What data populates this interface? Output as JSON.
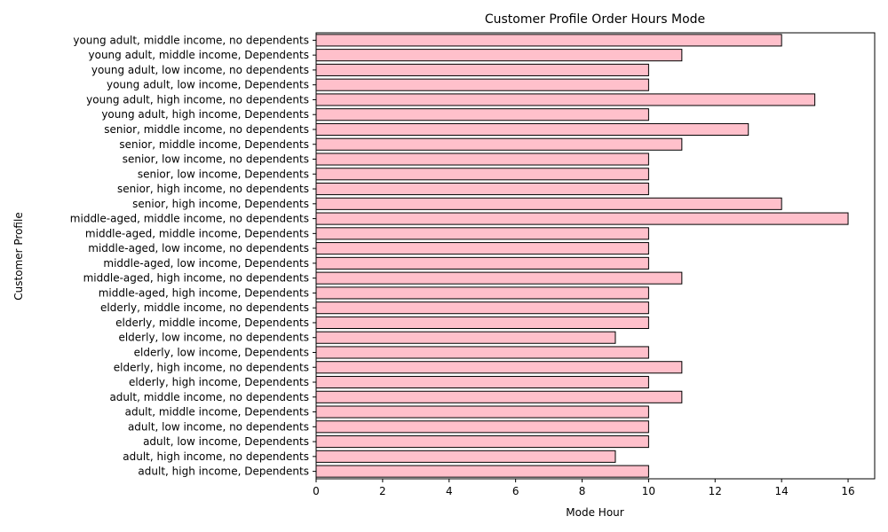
{
  "chart_data": {
    "type": "bar",
    "orientation": "horizontal",
    "title": "Customer Profile Order Hours Mode",
    "xlabel": "Mode Hour",
    "ylabel": "Customer Profile",
    "xlim": [
      0,
      16.8
    ],
    "xticks": [
      0,
      2,
      4,
      6,
      8,
      10,
      12,
      14,
      16
    ],
    "bar_color": "#FFC0CB",
    "edge_color": "#000000",
    "grid": false,
    "categories": [
      "adult, high income, Dependents",
      "adult, high income, no dependents",
      "adult, low income, Dependents",
      "adult, low income, no dependents",
      "adult, middle income, Dependents",
      "adult, middle income, no dependents",
      "elderly, high income, Dependents",
      "elderly, high income, no dependents",
      "elderly, low income, Dependents",
      "elderly, low income, no dependents",
      "elderly, middle income, Dependents",
      "elderly, middle income, no dependents",
      "middle-aged, high income, Dependents",
      "middle-aged, high income, no dependents",
      "middle-aged, low income, Dependents",
      "middle-aged, low income, no dependents",
      "middle-aged, middle income, Dependents",
      "middle-aged, middle income, no dependents",
      "senior, high income, Dependents",
      "senior, high income, no dependents",
      "senior, low income, Dependents",
      "senior, low income, no dependents",
      "senior, middle income, Dependents",
      "senior, middle income, no dependents",
      "young adult, high income, Dependents",
      "young adult, high income, no dependents",
      "young adult, low income, Dependents",
      "young adult, low income, no dependents",
      "young adult, middle income, Dependents",
      "young adult, middle income, no dependents"
    ],
    "values": [
      10,
      9,
      10,
      10,
      10,
      11,
      10,
      11,
      10,
      9,
      10,
      10,
      10,
      11,
      10,
      10,
      10,
      16,
      14,
      10,
      10,
      10,
      11,
      13,
      10,
      15,
      10,
      10,
      11,
      14
    ]
  }
}
